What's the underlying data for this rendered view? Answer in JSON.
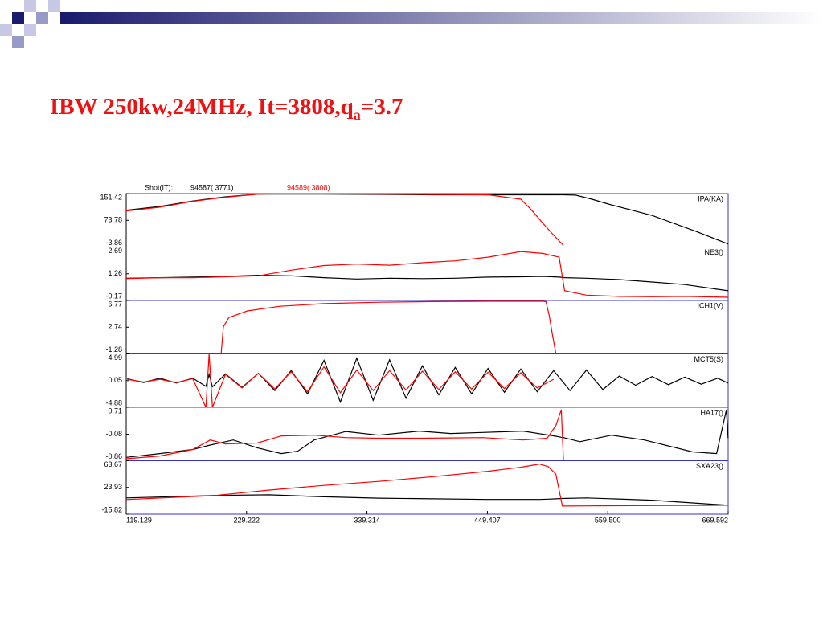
{
  "slide_title": {
    "text": "IBW 250kw,24MHz, It=3808,q",
    "subscript": "a",
    "suffix": "=3.7"
  },
  "legend": {
    "label": "Shot(IT):",
    "entries": [
      {
        "name": "94587( 3771)",
        "color": "#000000"
      },
      {
        "name": "94589( 3808)",
        "color": "#ff0000"
      }
    ]
  },
  "chart_data": [
    {
      "type": "line",
      "title": "IPA(KA)",
      "xlim": [
        119.129,
        669.592
      ],
      "ylim": [
        -3.86,
        151.42
      ],
      "yticks": [
        -3.86,
        73.78,
        151.42
      ],
      "x": [
        119.1,
        150,
        180,
        210,
        240,
        270,
        300,
        350,
        400,
        450,
        480,
        490,
        500,
        510,
        519,
        530,
        545,
        560,
        600,
        640,
        669.5
      ],
      "series": [
        {
          "color": "#000000",
          "values": [
            103,
            114,
            130,
            142,
            150,
            150,
            150,
            149,
            148,
            148,
            148,
            148,
            148,
            148,
            148,
            147,
            135,
            121,
            88,
            42,
            5
          ]
        },
        {
          "color": "#ff0000",
          "values": [
            101,
            112,
            129,
            141,
            150,
            151,
            151,
            150,
            149,
            148,
            135,
            103,
            66,
            31,
            0.8,
            null,
            null,
            null,
            null,
            null,
            null
          ]
        }
      ]
    },
    {
      "type": "line",
      "title": "NE3()",
      "xlim": [
        119.129,
        669.592
      ],
      "ylim": [
        -0.17,
        2.69
      ],
      "yticks": [
        -0.17,
        1.26,
        2.69
      ],
      "x": [
        119.1,
        150,
        180,
        210,
        240,
        270,
        300,
        330,
        360,
        390,
        420,
        450,
        480,
        500,
        515,
        520,
        540,
        570,
        600,
        630,
        669.5
      ],
      "series": [
        {
          "color": "#000000",
          "values": [
            1.02,
            1.05,
            1.08,
            1.12,
            1.18,
            1.15,
            1.05,
            0.98,
            1.02,
            1.0,
            1.02,
            1.08,
            1.1,
            1.12,
            1.08,
            1.05,
            1.02,
            0.95,
            0.82,
            0.68,
            0.35
          ]
        },
        {
          "color": "#ff0000",
          "values": [
            1.0,
            1.05,
            1.05,
            1.1,
            1.15,
            1.45,
            1.7,
            1.78,
            1.72,
            1.85,
            1.95,
            2.15,
            2.45,
            2.35,
            2.15,
            0.35,
            0.12,
            0.05,
            0.03,
            0.05,
            0.0
          ]
        }
      ]
    },
    {
      "type": "line",
      "title": "ICH1(V)",
      "xlim": [
        119.129,
        669.592
      ],
      "ylim": [
        -1.28,
        6.77
      ],
      "yticks": [
        -1.28,
        2.74,
        6.77
      ],
      "x": [
        119.1,
        200,
        206,
        208,
        213,
        230,
        260,
        300,
        350,
        400,
        450,
        500,
        503,
        506,
        509,
        512,
        540,
        600,
        669.5
      ],
      "series": [
        {
          "color": "#000000",
          "values": [
            -1.2,
            -1.2,
            -1.2,
            -1.2,
            -1.2,
            -1.2,
            -1.2,
            -1.2,
            -1.2,
            -1.2,
            -1.2,
            -1.2,
            -1.2,
            -1.2,
            -1.2,
            -1.2,
            -1.2,
            -1.2,
            -1.2
          ]
        },
        {
          "color": "#ff0000",
          "values": [
            -1.2,
            -1.2,
            -1.2,
            2.8,
            4.2,
            5.2,
            5.9,
            6.3,
            6.5,
            6.6,
            6.65,
            6.65,
            6.6,
            4.5,
            1.5,
            -1.2,
            -1.25,
            -1.25,
            -1.25
          ]
        }
      ]
    },
    {
      "type": "line",
      "title": "MCT5(S)",
      "xlim": [
        119.129,
        669.592
      ],
      "ylim": [
        -4.88,
        4.99
      ],
      "yticks": [
        -4.88,
        0.05,
        4.99
      ],
      "x": [
        120,
        135,
        150,
        165,
        180,
        192,
        195,
        198,
        210,
        225,
        240,
        255,
        270,
        285,
        300,
        315,
        330,
        345,
        360,
        375,
        390,
        405,
        420,
        435,
        450,
        465,
        480,
        495,
        510,
        525,
        540,
        555,
        570,
        585,
        600,
        615,
        630,
        645,
        660,
        669.5
      ],
      "series": [
        {
          "color": "#000000",
          "values": [
            0.4,
            -0.3,
            0.5,
            -0.4,
            0.5,
            -1.0,
            1.2,
            -1.1,
            1.3,
            -1.2,
            1.4,
            -1.8,
            1.9,
            -2.4,
            3.8,
            -3.9,
            4.2,
            -3.6,
            3.9,
            -3.2,
            2.8,
            -2.6,
            2.5,
            -2.4,
            2.3,
            -2.1,
            2.2,
            -2.0,
            1.9,
            -1.8,
            2.0,
            -1.6,
            0.9,
            -0.8,
            0.8,
            -0.7,
            0.7,
            -0.6,
            0.5,
            -0.4
          ]
        },
        {
          "color": "#ff0000",
          "values": [
            0.3,
            -0.2,
            0.3,
            -0.3,
            0.4,
            -4.88,
            4.99,
            -4.88,
            1.2,
            -1.3,
            1.4,
            -1.5,
            1.7,
            -2.0,
            2.6,
            -2.2,
            2.0,
            -1.8,
            1.9,
            -1.7,
            1.8,
            -1.6,
            1.7,
            -1.5,
            1.6,
            -1.4,
            1.5,
            -1.3,
            0.3,
            null,
            null,
            null,
            null,
            null,
            null,
            null,
            null,
            null,
            null,
            null
          ]
        }
      ]
    },
    {
      "type": "line",
      "title": "HA17()",
      "xlim": [
        119.129,
        669.592
      ],
      "ylim": [
        -0.86,
        0.71
      ],
      "yticks": [
        -0.86,
        -0.08,
        0.71
      ],
      "x": [
        119.1,
        150,
        180,
        196,
        210,
        217,
        239,
        261,
        276,
        291,
        320,
        350,
        387,
        416,
        445,
        482,
        504,
        512,
        517,
        519,
        534,
        563,
        593,
        637,
        659,
        668,
        669.5
      ],
      "series": [
        {
          "color": "#000000",
          "values": [
            -0.76,
            -0.65,
            -0.53,
            -0.4,
            -0.3,
            -0.25,
            -0.48,
            -0.65,
            -0.58,
            -0.25,
            0.0,
            -0.11,
            0.01,
            -0.06,
            -0.03,
            0.01,
            -0.1,
            -0.14,
            -0.17,
            -0.18,
            -0.3,
            -0.11,
            -0.25,
            -0.6,
            -0.65,
            0.64,
            -0.2
          ]
        },
        {
          "color": "#ff0000",
          "values": [
            -0.8,
            -0.72,
            -0.53,
            -0.25,
            -0.37,
            -0.36,
            -0.34,
            -0.13,
            -0.12,
            -0.11,
            -0.18,
            -0.2,
            -0.2,
            -0.19,
            -0.18,
            -0.25,
            -0.2,
            0.17,
            0.64,
            -0.86,
            null,
            null,
            null,
            null,
            null,
            null,
            null
          ]
        }
      ]
    },
    {
      "type": "line",
      "title": "SXA23()",
      "xlim": [
        119.129,
        669.592
      ],
      "ylim": [
        -15.82,
        63.67
      ],
      "yticks": [
        -15.82,
        23.93,
        63.67
      ],
      "xticks": [
        119.129,
        229.222,
        339.314,
        449.407,
        {
          "value": 559.5,
          "label": "559.500"
        },
        669.592
      ],
      "x": [
        119.1,
        200,
        250,
        300,
        350,
        400,
        450,
        480,
        497,
        505,
        512,
        518,
        540,
        600,
        669.5
      ],
      "series": [
        {
          "color": "#000000",
          "values": [
            8.3,
            12,
            13,
            10,
            8,
            7,
            6,
            6,
            6,
            6.5,
            7,
            7.5,
            8.3,
            5,
            -2.5
          ]
        },
        {
          "color": "#ff0000",
          "values": [
            5.9,
            11.9,
            20,
            27,
            33,
            40,
            48,
            54,
            58.8,
            55,
            44,
            -3.8,
            -3.5,
            -3,
            -2.5
          ]
        }
      ]
    }
  ]
}
